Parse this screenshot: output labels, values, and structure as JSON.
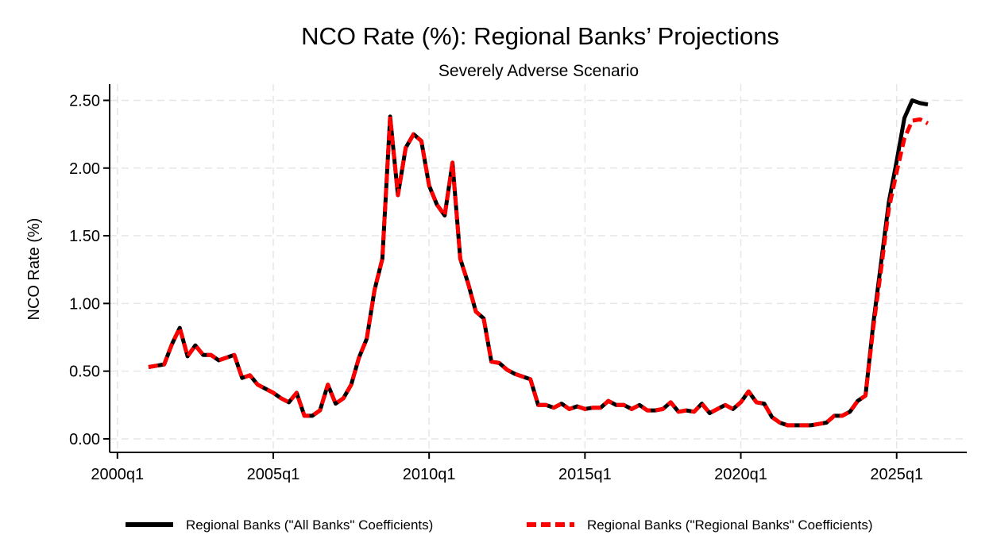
{
  "chart_data": {
    "type": "line",
    "title": "NCO Rate (%): Regional Banks’ Projections",
    "subtitle": "Severely Adverse Scenario",
    "ylabel": "NCO Rate (%)",
    "xlabel": "",
    "ylim": [
      -0.1,
      2.62
    ],
    "xlim": [
      "1999q4",
      "2027q2"
    ],
    "yticks": [
      "0.00",
      "0.50",
      "1.00",
      "1.50",
      "2.00",
      "2.50"
    ],
    "xticks": [
      "2000q1",
      "2005q1",
      "2010q1",
      "2015q1",
      "2020q1",
      "2025q1"
    ],
    "grid": true,
    "legend_position": "bottom",
    "x": [
      "2001q1",
      "2001q2",
      "2001q3",
      "2001q4",
      "2002q1",
      "2002q2",
      "2002q3",
      "2002q4",
      "2003q1",
      "2003q2",
      "2003q3",
      "2003q4",
      "2004q1",
      "2004q2",
      "2004q3",
      "2004q4",
      "2005q1",
      "2005q2",
      "2005q3",
      "2005q4",
      "2006q1",
      "2006q2",
      "2006q3",
      "2006q4",
      "2007q1",
      "2007q2",
      "2007q3",
      "2007q4",
      "2008q1",
      "2008q2",
      "2008q3",
      "2008q4",
      "2009q1",
      "2009q2",
      "2009q3",
      "2009q4",
      "2010q1",
      "2010q2",
      "2010q3",
      "2010q4",
      "2011q1",
      "2011q2",
      "2011q3",
      "2011q4",
      "2012q1",
      "2012q2",
      "2012q3",
      "2012q4",
      "2013q1",
      "2013q2",
      "2013q3",
      "2013q4",
      "2014q1",
      "2014q2",
      "2014q3",
      "2014q4",
      "2015q1",
      "2015q2",
      "2015q3",
      "2015q4",
      "2016q1",
      "2016q2",
      "2016q3",
      "2016q4",
      "2017q1",
      "2017q2",
      "2017q3",
      "2017q4",
      "2018q1",
      "2018q2",
      "2018q3",
      "2018q4",
      "2019q1",
      "2019q2",
      "2019q3",
      "2019q4",
      "2020q1",
      "2020q2",
      "2020q3",
      "2020q4",
      "2021q1",
      "2021q2",
      "2021q3",
      "2021q4",
      "2022q1",
      "2022q2",
      "2022q3",
      "2022q4",
      "2023q1",
      "2023q2",
      "2023q3",
      "2023q4",
      "2024q1",
      "2024q2",
      "2024q3",
      "2024q4",
      "2025q1",
      "2025q2",
      "2025q3",
      "2025q4",
      "2026q1"
    ],
    "series": [
      {
        "name": "Regional Banks (\"All Banks\" Coefficients)",
        "color": "#000000",
        "style": "solid",
        "values": [
          0.53,
          0.54,
          0.55,
          0.7,
          0.82,
          0.61,
          0.69,
          0.62,
          0.62,
          0.58,
          0.6,
          0.62,
          0.45,
          0.47,
          0.4,
          0.37,
          0.34,
          0.3,
          0.27,
          0.34,
          0.17,
          0.17,
          0.21,
          0.4,
          0.26,
          0.3,
          0.4,
          0.6,
          0.74,
          1.1,
          1.33,
          2.38,
          1.8,
          2.15,
          2.25,
          2.2,
          1.87,
          1.73,
          1.65,
          2.04,
          1.33,
          1.15,
          0.94,
          0.89,
          0.57,
          0.56,
          0.51,
          0.48,
          0.46,
          0.44,
          0.25,
          0.25,
          0.23,
          0.26,
          0.22,
          0.24,
          0.22,
          0.23,
          0.23,
          0.28,
          0.25,
          0.25,
          0.22,
          0.25,
          0.21,
          0.21,
          0.22,
          0.27,
          0.2,
          0.21,
          0.2,
          0.26,
          0.19,
          0.22,
          0.25,
          0.22,
          0.27,
          0.35,
          0.27,
          0.26,
          0.16,
          0.12,
          0.1,
          0.1,
          0.1,
          0.1,
          0.11,
          0.12,
          0.17,
          0.17,
          0.2,
          0.28,
          0.32,
          0.85,
          1.3,
          1.75,
          2.05,
          2.37,
          2.5,
          2.48,
          2.47
        ]
      },
      {
        "name": "Regional Banks (\"Regional Banks\" Coefficients)",
        "color": "#ff0000",
        "style": "dashed",
        "values": [
          0.53,
          0.54,
          0.55,
          0.7,
          0.82,
          0.61,
          0.69,
          0.62,
          0.62,
          0.58,
          0.6,
          0.62,
          0.45,
          0.47,
          0.4,
          0.37,
          0.34,
          0.3,
          0.27,
          0.34,
          0.17,
          0.17,
          0.21,
          0.4,
          0.26,
          0.3,
          0.4,
          0.6,
          0.74,
          1.1,
          1.33,
          2.38,
          1.8,
          2.15,
          2.25,
          2.2,
          1.87,
          1.73,
          1.65,
          2.04,
          1.33,
          1.15,
          0.94,
          0.89,
          0.57,
          0.56,
          0.51,
          0.48,
          0.46,
          0.44,
          0.25,
          0.25,
          0.23,
          0.26,
          0.22,
          0.24,
          0.22,
          0.23,
          0.23,
          0.28,
          0.25,
          0.25,
          0.22,
          0.25,
          0.21,
          0.21,
          0.22,
          0.27,
          0.2,
          0.21,
          0.2,
          0.26,
          0.19,
          0.22,
          0.25,
          0.22,
          0.27,
          0.35,
          0.27,
          0.26,
          0.16,
          0.12,
          0.1,
          0.1,
          0.1,
          0.1,
          0.11,
          0.12,
          0.17,
          0.17,
          0.2,
          0.28,
          0.32,
          0.82,
          1.25,
          1.7,
          1.97,
          2.22,
          2.35,
          2.36,
          2.33
        ]
      }
    ]
  }
}
